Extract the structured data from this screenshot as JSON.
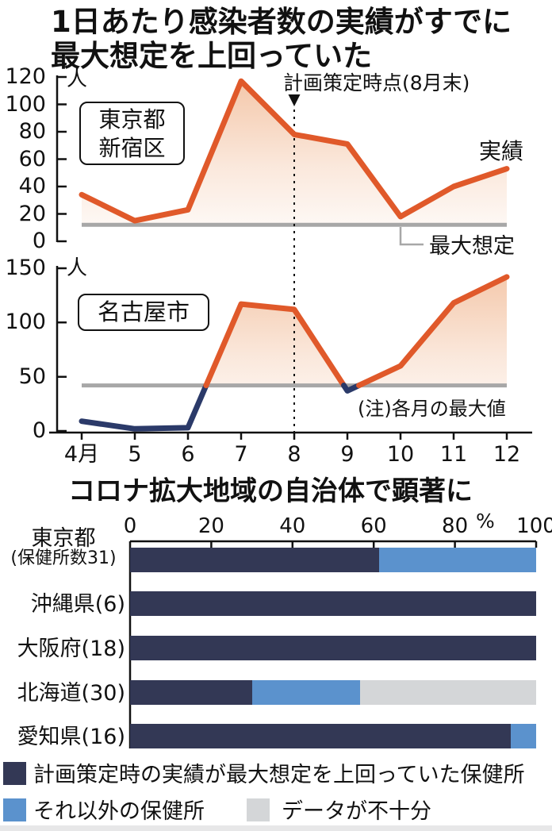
{
  "title": {
    "line1": "1日あたり感染者数の実績がすでに",
    "line2": "最大想定を上回っていた"
  },
  "chart_data": [
    {
      "type": "line",
      "title": "東京都新宿区",
      "title_lines": [
        "東京都",
        "新宿区"
      ],
      "unit": "人",
      "x": [
        "4月",
        "5",
        "6",
        "7",
        "8",
        "9",
        "10",
        "11",
        "12"
      ],
      "series": [
        {
          "name": "実績",
          "color": "#e0592a",
          "values": [
            34,
            15,
            23,
            117,
            78,
            71,
            18,
            40,
            53
          ]
        }
      ],
      "threshold": {
        "label": "最大想定",
        "value": 12,
        "color": "#a7a7a7"
      },
      "annotation": {
        "label": "計画策定時点(8月末)",
        "month": "8",
        "marker": "down-triangle"
      },
      "ylim": [
        0,
        120
      ],
      "yticks": [
        0,
        20,
        40,
        60,
        80,
        100,
        120
      ]
    },
    {
      "type": "line",
      "title": "名古屋市",
      "unit": "人",
      "x": [
        "4月",
        "5",
        "6",
        "7",
        "8",
        "9",
        "10",
        "11",
        "12"
      ],
      "series": [
        {
          "name": "実績",
          "color": "#e0592a",
          "below_threshold_color": "#2b3a69",
          "values": [
            9,
            2,
            3,
            117,
            112,
            37,
            60,
            118,
            142
          ]
        }
      ],
      "threshold": {
        "value": 42,
        "color": "#a7a7a7"
      },
      "note": "(注)各月の最大値",
      "ylim": [
        0,
        150
      ],
      "yticks": [
        0,
        50,
        100,
        150
      ]
    },
    {
      "type": "bar",
      "title": "コロナ拡大地域の自治体で顕著に",
      "unit": "%",
      "orientation": "horizontal",
      "stacked": true,
      "xlim": [
        0,
        100
      ],
      "xticks": [
        0,
        20,
        40,
        60,
        80,
        100
      ],
      "categories": [
        {
          "label": "東京都",
          "sublabel": "(保健所数31)"
        },
        {
          "label": "沖縄県(6)"
        },
        {
          "label": "大阪府(18)"
        },
        {
          "label": "北海道(30)"
        },
        {
          "label": "愛知県(16)"
        }
      ],
      "series": [
        {
          "name": "計画策定時の実績が最大想定を上回っていた保健所",
          "color": "#333855",
          "values": [
            61.3,
            100,
            100,
            30,
            93.8
          ]
        },
        {
          "name": "それ以外の保健所",
          "color": "#5b92cd",
          "values": [
            38.7,
            0,
            0,
            26.7,
            6.2
          ]
        },
        {
          "name": "データが不十分",
          "color": "#d4d6d8",
          "values": [
            0,
            0,
            0,
            43.3,
            0
          ]
        }
      ]
    }
  ]
}
